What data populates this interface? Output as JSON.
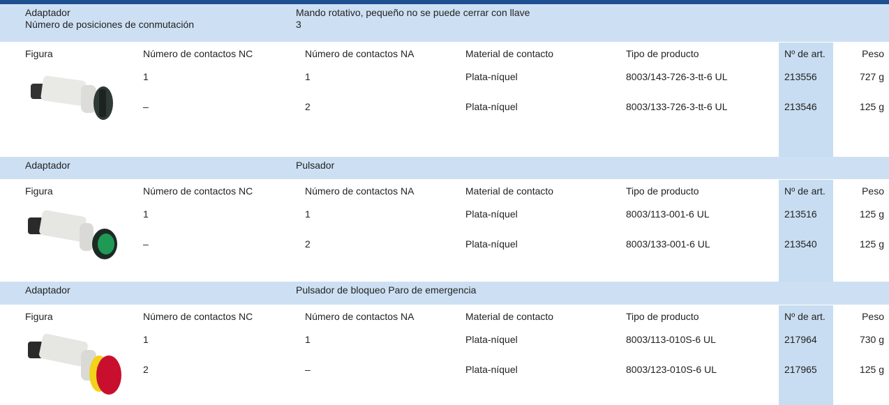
{
  "sections": [
    {
      "header": {
        "labels": [
          "Adaptador",
          "Número de posiciones de conmutación"
        ],
        "values": [
          "Mando rotativo, pequeño no se puede cerrar con llave",
          "3"
        ]
      },
      "columns": [
        "Figura",
        "Número de contactos NC",
        "Número de contactos NA",
        "Material de contacto",
        "Tipo de producto",
        "Nº de art.",
        "Peso"
      ],
      "rows": [
        [
          "1",
          "1",
          "Plata-níquel",
          "8003/143-726-3-tt-6 UL",
          "213556",
          "727 g"
        ],
        [
          "–",
          "2",
          "Plata-níquel",
          "8003/133-726-3-tt-6 UL",
          "213546",
          "125 g"
        ]
      ]
    },
    {
      "header": {
        "labels": [
          "Adaptador"
        ],
        "values": [
          "Pulsador"
        ]
      },
      "columns": [
        "Figura",
        "Número de contactos NC",
        "Número de contactos NA",
        "Material de contacto",
        "Tipo de producto",
        "Nº de art.",
        "Peso"
      ],
      "rows": [
        [
          "1",
          "1",
          "Plata-níquel",
          "8003/113-001-6 UL",
          "213516",
          "125 g"
        ],
        [
          "–",
          "2",
          "Plata-níquel",
          "8003/133-001-6 UL",
          "213540",
          "125 g"
        ]
      ]
    },
    {
      "header": {
        "labels": [
          "Adaptador"
        ],
        "values": [
          "Pulsador de bloqueo Paro de emergencia"
        ]
      },
      "columns": [
        "Figura",
        "Número de contactos NC",
        "Número de contactos NA",
        "Material de contacto",
        "Tipo de producto",
        "Nº de art.",
        "Peso"
      ],
      "rows": [
        [
          "1",
          "1",
          "Plata-níquel",
          "8003/113-010S-6 UL",
          "217964",
          "730 g"
        ],
        [
          "2",
          "–",
          "Plata-níquel",
          "8003/123-010S-6 UL",
          "217965",
          "125 g"
        ]
      ]
    }
  ]
}
